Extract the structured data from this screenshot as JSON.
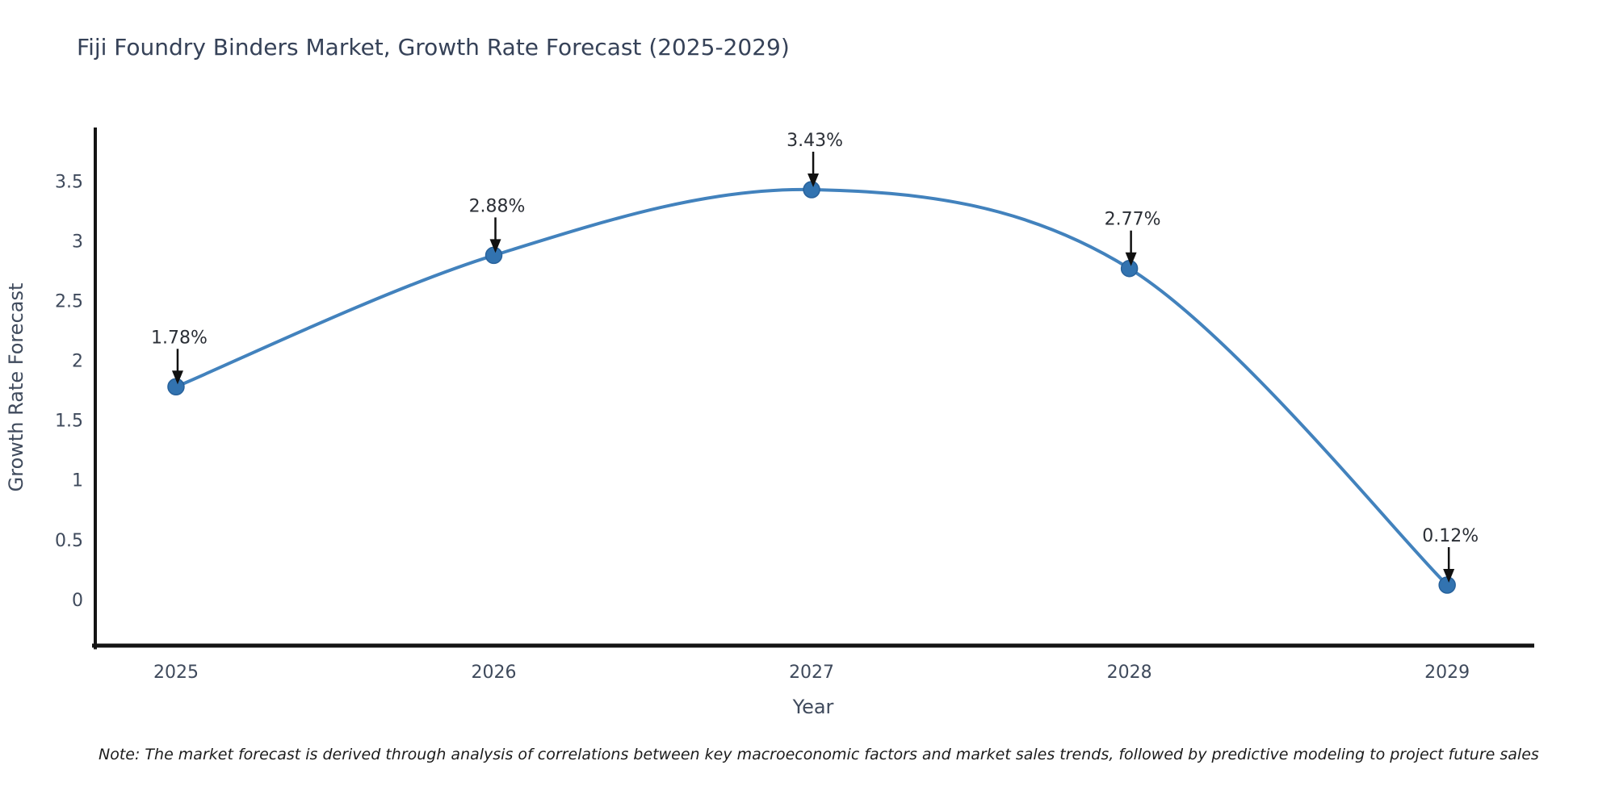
{
  "page": {
    "background": "#ffffff"
  },
  "chart_data": {
    "type": "line",
    "title": "Fiji Foundry Binders Market, Growth Rate Forecast (2025-2029)",
    "xlabel": "Year",
    "ylabel": "Growth Rate Forecast",
    "x": [
      2025,
      2026,
      2027,
      2028,
      2029
    ],
    "series": [
      {
        "name": "Growth Rate Forecast",
        "values": [
          1.78,
          2.88,
          3.43,
          2.77,
          0.12
        ]
      }
    ],
    "point_labels": [
      "1.78%",
      "2.88%",
      "3.43%",
      "2.77%",
      "0.12%"
    ],
    "x_tick_labels": [
      "2025",
      "2026",
      "2027",
      "2028",
      "2029"
    ],
    "y_tick_values": [
      0,
      0.5,
      1,
      1.5,
      2,
      2.5,
      3,
      3.5
    ],
    "y_tick_labels": [
      "0",
      "0.5",
      "1",
      "1.5",
      "2",
      "2.5",
      "3",
      "3.5"
    ],
    "xlim": [
      2024.746,
      2029.274
    ],
    "ylim": [
      -0.4,
      3.95
    ],
    "grid": false,
    "legend": "none",
    "line_shape": "spline",
    "colors": {
      "line": "#4282bd",
      "marker": "#3273b0",
      "marker_edge": "#28629c",
      "annotation_arrow": "#111111",
      "axis": "#141414",
      "title_text": "#364258",
      "tick_text": "#3f4a5c",
      "axis_title_text": "#3f4a5c",
      "label_text": "#2b2f36",
      "note_text": "#1c1c1c"
    }
  },
  "note": {
    "text": "Note: The market forecast is derived through analysis of correlations between key macroeconomic factors and market sales trends, followed by predictive modeling to project future sales"
  }
}
